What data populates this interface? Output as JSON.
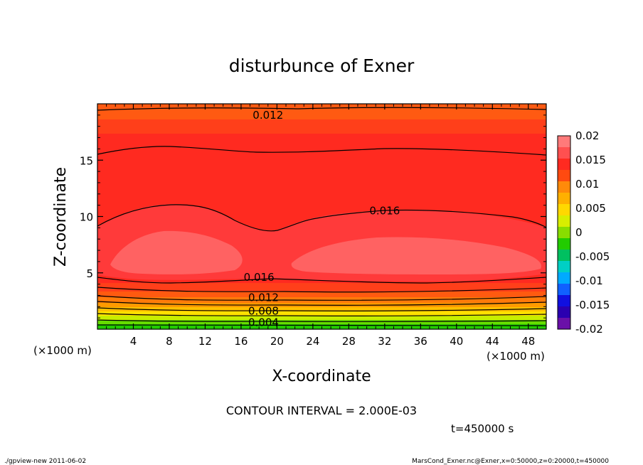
{
  "chart_data": {
    "type": "contour",
    "title": "disturbunce of Exner",
    "xlabel": "X-coordinate",
    "ylabel": "Z-coordinate",
    "x_unit_label": "(×1000 m)",
    "x_unit_label_right": "(×1000 m)",
    "xlim": [
      0,
      50
    ],
    "ylim": [
      0,
      20
    ],
    "x_ticks": [
      4,
      8,
      12,
      16,
      20,
      24,
      28,
      32,
      36,
      40,
      44,
      48
    ],
    "y_ticks": [
      5,
      10,
      15
    ],
    "contour_interval_text": "CONTOUR INTERVAL = 2.000E-03",
    "time_text": "t=450000 s",
    "contour_labels": [
      {
        "text": "0.012",
        "x": 19.0,
        "z": 19.0
      },
      {
        "text": "0.016",
        "x": 32.0,
        "z": 10.5
      },
      {
        "text": "0.016",
        "x": 18.0,
        "z": 4.6
      },
      {
        "text": "0.012",
        "x": 18.5,
        "z": 2.8
      },
      {
        "text": "0.008",
        "x": 18.5,
        "z": 1.6
      },
      {
        "text": "0.004",
        "x": 18.5,
        "z": 0.6
      }
    ],
    "colorbar": {
      "tick_labels": [
        "0.02",
        "0.015",
        "0.01",
        "0.005",
        "0",
        "-0.005",
        "-0.01",
        "-0.015",
        "-0.02"
      ],
      "levels": [
        0.02,
        0.015,
        0.01,
        0.005,
        0,
        -0.005,
        -0.01,
        -0.015,
        -0.02
      ],
      "colors": [
        "#ff7a7a",
        "#ff5050",
        "#ff2a20",
        "#ff4a10",
        "#ff8a0a",
        "#ffb000",
        "#ffd800",
        "#d8ee00",
        "#88dd00",
        "#22cc00",
        "#00c060",
        "#00cfc4",
        "#00aaff",
        "#1060ff",
        "#1010e0",
        "#2a00b0",
        "#6a10a8"
      ]
    }
  },
  "footer": {
    "left": "./gpview-new   2011-06-02",
    "right": "MarsCond_Exner.nc@Exner,x=0:50000,z=0:20000,t=450000"
  }
}
